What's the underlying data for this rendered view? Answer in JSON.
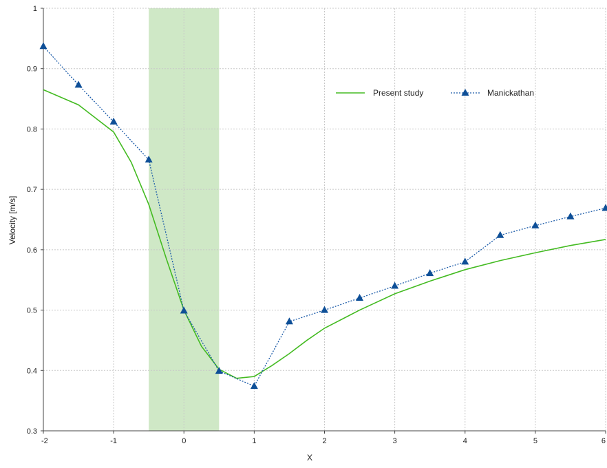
{
  "colors": {
    "present": "#44bb22",
    "manickathan": "#1a5aa8",
    "manickathan_marker": "#0e4f97",
    "band": "#cfe8c6",
    "grid": "#c8c8c8",
    "axis": "#444444"
  },
  "chart_data": {
    "type": "line",
    "xlabel": "X",
    "ylabel": "Velocity [m/s]",
    "xlim": [
      -2,
      6
    ],
    "ylim": [
      0.3,
      1.0
    ],
    "xticks": [
      -2,
      -1,
      0,
      1,
      2,
      3,
      4,
      5,
      6
    ],
    "yticks": [
      0.3,
      0.4,
      0.5,
      0.6,
      0.7,
      0.8,
      0.9,
      1.0
    ],
    "xtick_labels": [
      "-2",
      "-1",
      "0",
      "1",
      "2",
      "3",
      "4",
      "5",
      "6"
    ],
    "ytick_labels": [
      "0.3",
      "0.4",
      "0.5",
      "0.6",
      "0.7",
      "0.8",
      "0.9",
      "1"
    ],
    "grid": true,
    "legend_position": "top-right",
    "shaded_region": {
      "x_start": -0.5,
      "x_end": 0.5
    },
    "series": [
      {
        "name": "Present study",
        "style": "solid",
        "marker": "none",
        "x": [
          -2,
          -1.5,
          -1,
          -0.75,
          -0.5,
          -0.25,
          0,
          0.25,
          0.5,
          0.75,
          1,
          1.25,
          1.5,
          1.75,
          2,
          2.5,
          3,
          3.5,
          4,
          4.5,
          5,
          5.5,
          6
        ],
        "y": [
          0.865,
          0.84,
          0.795,
          0.745,
          0.675,
          0.585,
          0.5,
          0.44,
          0.402,
          0.387,
          0.39,
          0.408,
          0.428,
          0.45,
          0.47,
          0.5,
          0.527,
          0.548,
          0.567,
          0.582,
          0.595,
          0.607,
          0.617
        ]
      },
      {
        "name": "Manickathan",
        "style": "dotted",
        "marker": "triangle",
        "x": [
          -2,
          -1.5,
          -1,
          -0.5,
          0,
          0.5,
          1,
          1.5,
          2,
          2.5,
          3,
          3.5,
          4,
          4.5,
          5,
          5.5,
          6
        ],
        "y": [
          0.937,
          0.873,
          0.812,
          0.749,
          0.499,
          0.399,
          0.374,
          0.481,
          0.5,
          0.52,
          0.54,
          0.561,
          0.58,
          0.624,
          0.64,
          0.655,
          0.669
        ]
      }
    ]
  }
}
